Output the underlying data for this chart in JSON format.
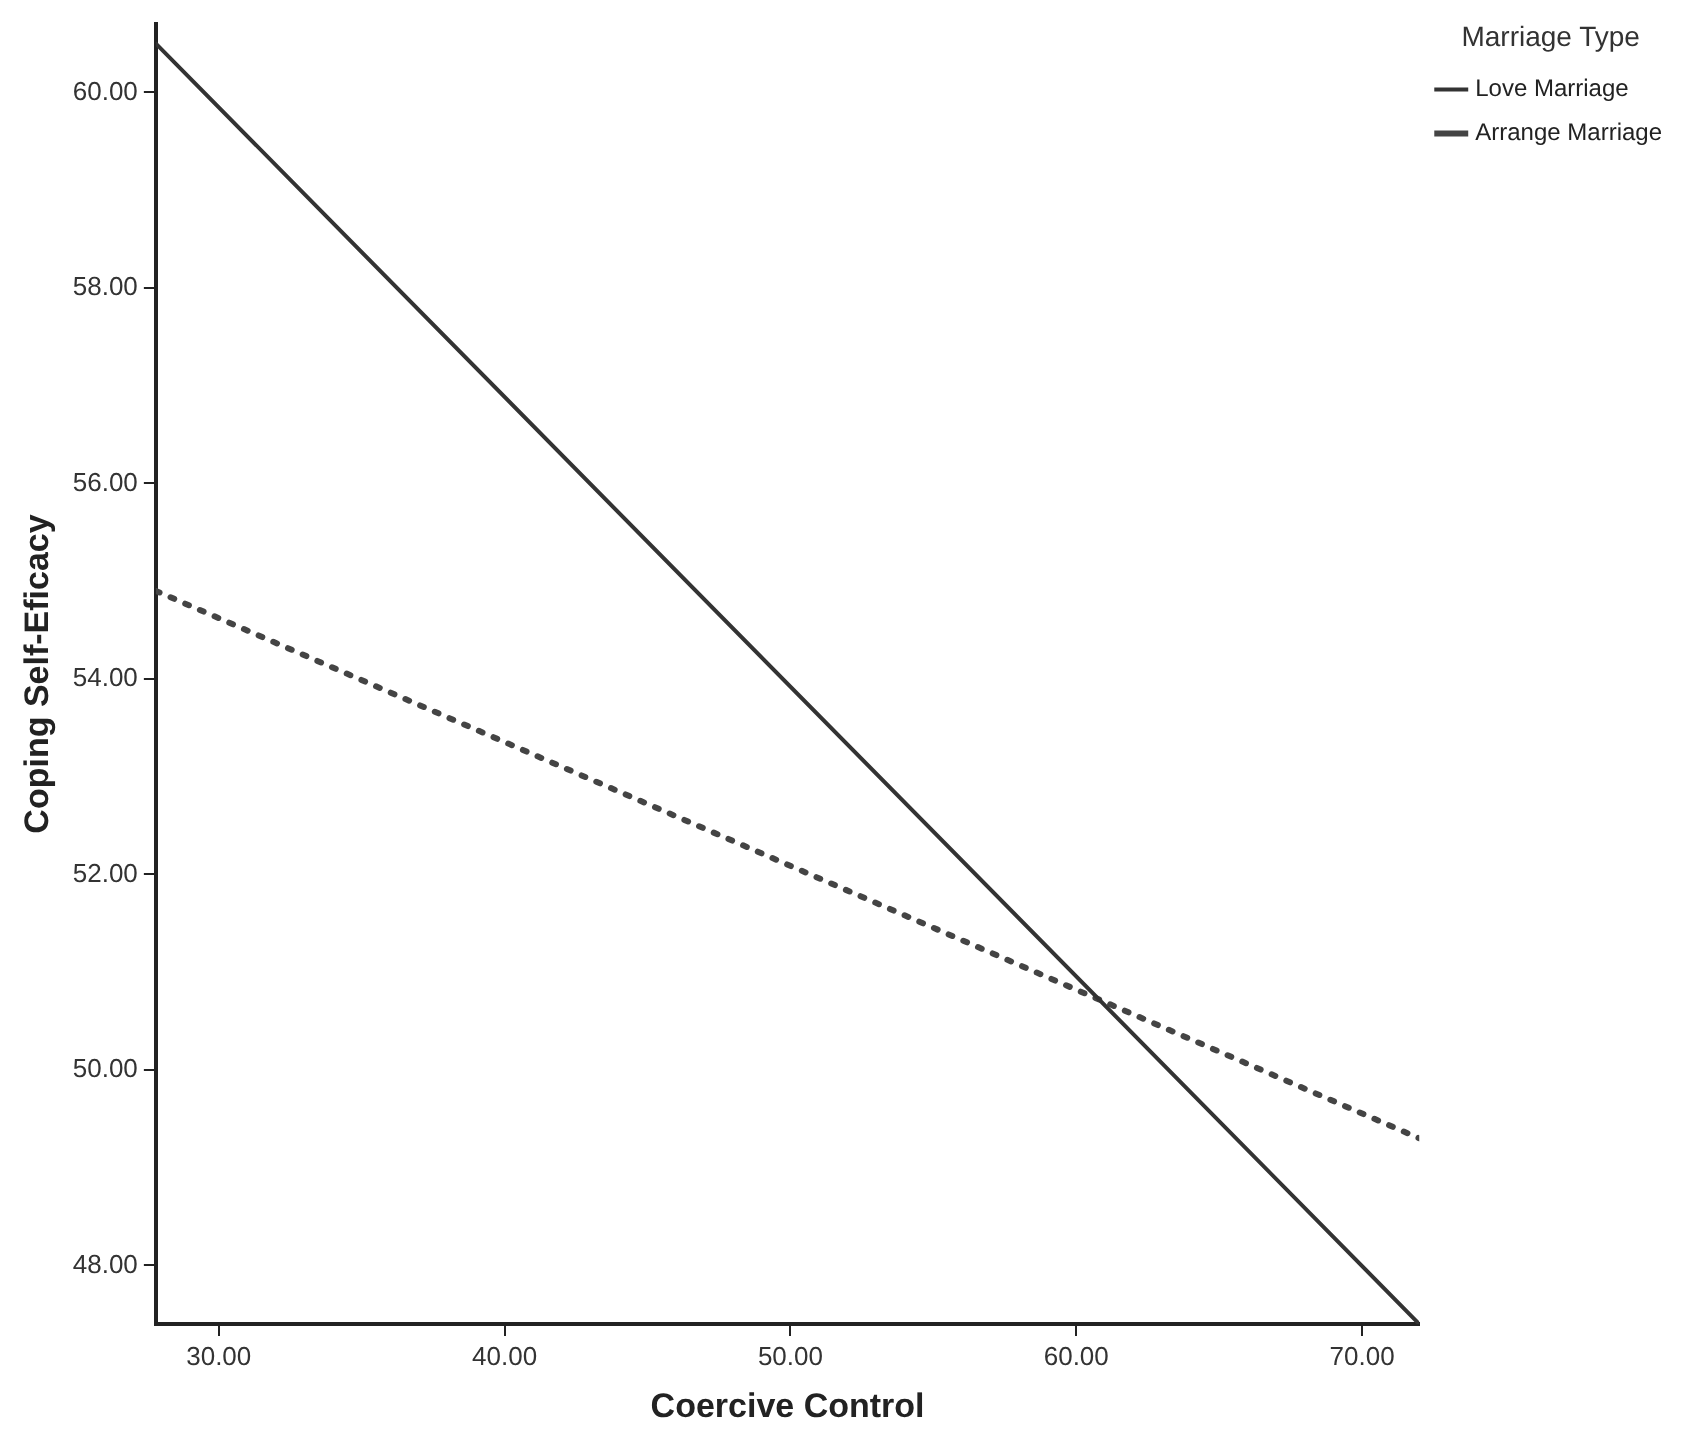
{
  "chart_data": {
    "type": "line",
    "xlabel": "Coercive Control",
    "ylabel": "Coping Self-Eficacy",
    "legend_title": "Marriage Type",
    "legend": "top right",
    "grid": false,
    "marker": "none",
    "xlim": [
      27.8,
      72
    ],
    "ylim": [
      47.4,
      60.7
    ],
    "xticks": [
      {
        "value": 30,
        "label": "30.00"
      },
      {
        "value": 40,
        "label": "40.00"
      },
      {
        "value": 50,
        "label": "50.00"
      },
      {
        "value": 60,
        "label": "60.00"
      },
      {
        "value": 70,
        "label": "70.00"
      }
    ],
    "yticks": [
      {
        "value": 48,
        "label": "48.00"
      },
      {
        "value": 50,
        "label": "50.00"
      },
      {
        "value": 52,
        "label": "52.00"
      },
      {
        "value": 54,
        "label": "54.00"
      },
      {
        "value": 56,
        "label": "56.00"
      },
      {
        "value": 58,
        "label": "58.00"
      },
      {
        "value": 60,
        "label": "60.00"
      }
    ],
    "x": [
      27.8,
      72
    ],
    "series": [
      {
        "name": "Love Marriage",
        "color": "#333333",
        "line_style": "solid",
        "values": [
          60.5,
          47.4
        ]
      },
      {
        "name": "Arrange Marriage",
        "color": "#444444",
        "line_style": "dotted",
        "values": [
          54.9,
          49.3
        ]
      }
    ]
  }
}
